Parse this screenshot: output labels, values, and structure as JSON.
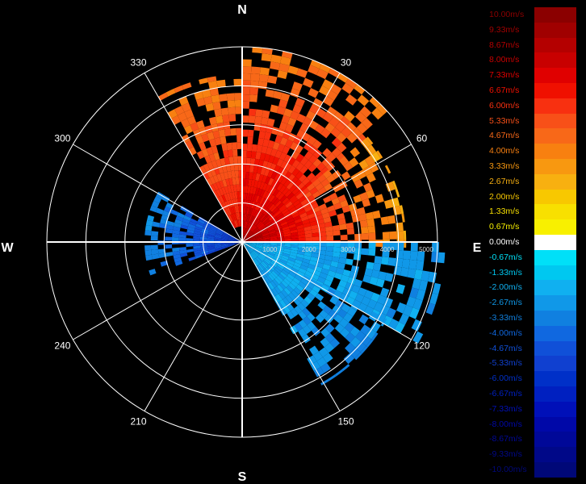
{
  "chart_data": {
    "type": "polar",
    "compass": {
      "north": "N",
      "east": "E",
      "south": "S",
      "west": "W"
    },
    "azimuth_labels": [
      "30",
      "60",
      "120",
      "150",
      "210",
      "240",
      "300",
      "330"
    ],
    "range_labels": [
      "1000",
      "2000",
      "3000",
      "4000",
      "5000"
    ],
    "colorbar": {
      "labels": [
        "10.00m/s",
        "9.33m/s",
        "8.67m/s",
        "8.00m/s",
        "7.33m/s",
        "6.67m/s",
        "6.00m/s",
        "5.33m/s",
        "4.67m/s",
        "4.00m/s",
        "3.33m/s",
        "2.67m/s",
        "2.00m/s",
        "1.33m/s",
        "0.67m/s",
        "0.00m/s",
        "-0.67m/s",
        "-1.33m/s",
        "-2.00m/s",
        "-2.67m/s",
        "-3.33m/s",
        "-4.00m/s",
        "-4.67m/s",
        "-5.33m/s",
        "-6.00m/s",
        "-6.67m/s",
        "-7.33m/s",
        "-8.00m/s",
        "-8.67m/s",
        "-9.33m/s",
        "-10.00m/s"
      ],
      "colors": [
        "#8b0000",
        "#a00000",
        "#b40000",
        "#c80000",
        "#e00000",
        "#f01000",
        "#f83010",
        "#f85018",
        "#f86818",
        "#f88010",
        "#f89810",
        "#f8b010",
        "#f8c800",
        "#f8e000",
        "#f8f000",
        "#ffffff",
        "#00e0f8",
        "#00c8f0",
        "#10b0f0",
        "#1098e8",
        "#1080e0",
        "#1068e0",
        "#1050d8",
        "#1040d0",
        "#0030c8",
        "#0020c0",
        "#0010b8",
        "#0008a8",
        "#000898",
        "#000888",
        "#000878"
      ]
    },
    "velocity_sectors": [
      {
        "az_from": 0,
        "az_to": 50,
        "r_from": 0,
        "r_to": 5000,
        "v_near": 8.0,
        "v_far": 4.0
      },
      {
        "az_from": 50,
        "az_to": 90,
        "r_from": 0,
        "r_to": 4200,
        "v_near": 8.5,
        "v_far": 3.0
      },
      {
        "az_from": 330,
        "az_to": 360,
        "r_from": 400,
        "r_to": 4300,
        "v_near": 6.5,
        "v_far": 4.0
      },
      {
        "az_from": 90,
        "az_to": 118,
        "r_from": 0,
        "r_to": 5200,
        "v_near": -2.0,
        "v_far": -2.8
      },
      {
        "az_from": 118,
        "az_to": 150,
        "r_from": 0,
        "r_to": 4200,
        "v_near": -2.0,
        "v_far": -3.2
      },
      {
        "az_from": 250,
        "az_to": 300,
        "r_from": 0,
        "r_to": 2500,
        "v_near": -5.5,
        "v_far": -3.0
      }
    ]
  }
}
